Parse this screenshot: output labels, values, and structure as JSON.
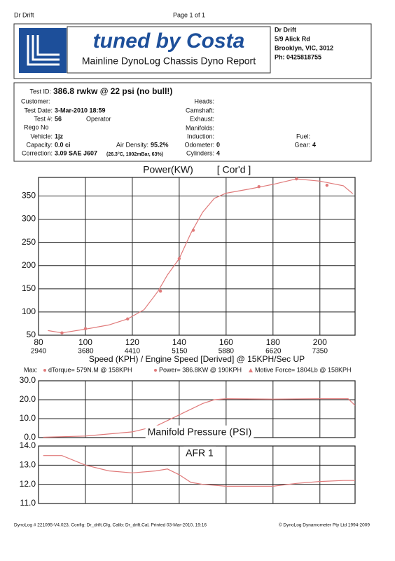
{
  "header": {
    "left": "Dr Drift",
    "page": "Page 1 of 1"
  },
  "logo": {
    "title": "tuned by Costa",
    "subtitle": "Mainline DynoLog Chassis Dyno Report"
  },
  "address": [
    "Dr Drift",
    "5/9 Alick Rd",
    "Brooklyn, VIC, 3012",
    "Ph: 0425818755"
  ],
  "fields": {
    "test_id": {
      "label": "Test ID:",
      "value": "386.8 rwkw @ 22 psi (no bull!)"
    },
    "customer": {
      "label": "Customer:"
    },
    "test_date": {
      "label": "Test Date:",
      "value": "3-Mar-2010 18:59"
    },
    "test_no": {
      "label": "Test #:",
      "value": "56"
    },
    "operator": {
      "label": "Operator"
    },
    "rego": {
      "label": "Rego No"
    },
    "vehicle": {
      "label": "Vehicle:",
      "value": "1jz"
    },
    "capacity": {
      "label": "Capacity:",
      "value": "0.0 ci"
    },
    "air_density": {
      "label": "Air Density:",
      "value": "95.2%",
      "detail": "(26.3°C, 1002mBar, 63%)"
    },
    "correction": {
      "label": "Correction:",
      "value": "3.09 SAE J607"
    },
    "heads": {
      "label": "Heads:"
    },
    "camshaft": {
      "label": "Camshaft:"
    },
    "exhaust": {
      "label": "Exhaust:"
    },
    "manifolds": {
      "label": "Manifolds:"
    },
    "induction": {
      "label": "Induction:"
    },
    "odometer": {
      "label": "Odometer:",
      "value": "0"
    },
    "cylinders": {
      "label": "Cylinders:",
      "value": "4"
    },
    "fuel": {
      "label": "Fuel:"
    },
    "gear": {
      "label": "Gear:",
      "value": "4"
    }
  },
  "max": {
    "label": "Max:",
    "items": [
      "dTorque= 579N.M @ 158KPH",
      "Power= 386.8KW @ 190KPH",
      "Motive Force= 1804Lb @ 158KPH"
    ]
  },
  "chart_data": [
    {
      "type": "line",
      "title": "Power(KW)",
      "annotation": "[ Cor'd ]",
      "x_label": "Speed (KPH) / Engine Speed [Derived] @ 15KPH/Sec UP",
      "color": "#e07a7a",
      "grid": true,
      "xlim": [
        80,
        215
      ],
      "xticks": [
        80,
        100,
        120,
        140,
        160,
        180,
        200
      ],
      "x2lim": [
        2940,
        7901
      ],
      "x2ticks": [
        2940,
        3680,
        4410,
        5150,
        5880,
        6620,
        7350
      ],
      "ylim": [
        50,
        390
      ],
      "yticks": [
        50,
        100,
        150,
        200,
        250,
        300,
        350
      ],
      "x": [
        84,
        90,
        100,
        110,
        118,
        125,
        131,
        135,
        140,
        145,
        150,
        155,
        160,
        170,
        180,
        190,
        200,
        210,
        214
      ],
      "values": [
        60,
        55,
        63,
        72,
        85,
        105,
        145,
        180,
        215,
        270,
        315,
        345,
        356,
        365,
        375,
        386.8,
        382,
        372,
        355
      ],
      "marker_x": [
        90,
        100,
        118,
        132,
        140,
        146,
        174,
        190,
        203
      ],
      "marker_values": [
        55,
        64,
        85,
        145,
        215,
        276,
        370,
        386.8,
        373
      ]
    },
    {
      "type": "line",
      "title": "Manifold Pressure (PSI)",
      "color": "#e07a7a",
      "grid": true,
      "xlim": [
        80,
        215
      ],
      "xticks": [
        80,
        100,
        120,
        140,
        160,
        180,
        200
      ],
      "ylim": [
        0,
        30
      ],
      "yticks": [
        {
          "value": 0,
          "label": "0.0"
        },
        {
          "value": 10,
          "label": "10.0"
        },
        {
          "value": 20,
          "label": "20.0"
        },
        {
          "value": 30,
          "label": "30.0"
        }
      ],
      "x": [
        82,
        100,
        120,
        130,
        140,
        150,
        155,
        160,
        180,
        200,
        212,
        215
      ],
      "values": [
        0.2,
        0.8,
        3,
        6,
        12,
        18,
        20,
        20.5,
        20.3,
        20.5,
        20.5,
        17
      ]
    },
    {
      "type": "line",
      "title": "AFR 1",
      "color": "#e07a7a",
      "grid": true,
      "xlim": [
        80,
        215
      ],
      "xticks": [
        80,
        100,
        120,
        140,
        160,
        180,
        200
      ],
      "ylim": [
        11,
        14
      ],
      "yticks": [
        {
          "value": 11,
          "label": "11.0"
        },
        {
          "value": 12,
          "label": "12.0"
        },
        {
          "value": 13,
          "label": "13.0"
        },
        {
          "value": 14,
          "label": "14.0"
        }
      ],
      "x": [
        82,
        90,
        100,
        110,
        120,
        130,
        135,
        140,
        145,
        150,
        160,
        170,
        180,
        190,
        200,
        210,
        215
      ],
      "values": [
        13.5,
        13.5,
        13.0,
        12.7,
        12.6,
        12.7,
        12.8,
        12.5,
        12.1,
        12.0,
        11.9,
        11.9,
        11.9,
        12.05,
        12.15,
        12.2,
        12.2
      ]
    }
  ],
  "footer": {
    "left": "DynoLog # 221095-V4.023, Config: Dr_drift.Cfg, Calib: Dr_drift.Cal, Printed 03-Mar-2010, 19:16",
    "right": "© DynoLog Dynamometer Pty Ltd 1994-2009"
  }
}
